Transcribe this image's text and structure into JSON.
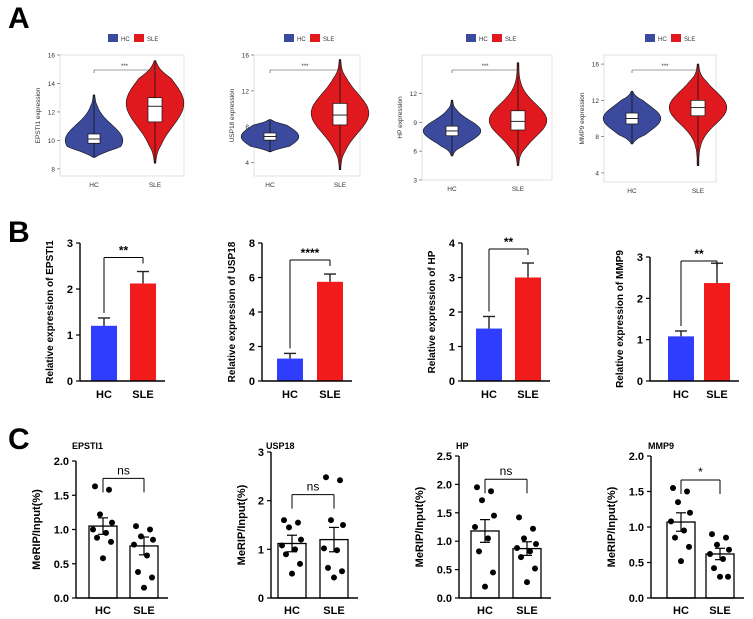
{
  "panel_labels": [
    "A",
    "B",
    "C"
  ],
  "colors": {
    "hc": "#3b4a9c",
    "sle": "#e0191f",
    "bar_hc": "#2f3dff",
    "bar_sle": "#f21b1b",
    "axis": "#000000"
  },
  "chart_data": [
    {
      "panel": "A",
      "type": "violin",
      "title": "",
      "ylabel": "EPSTI1 expression",
      "xlabel": "",
      "categories": [
        "HC",
        "SLE"
      ],
      "legend": [
        "HC",
        "SLE"
      ],
      "legend_position": "top-center",
      "ylim": [
        7.5,
        16
      ],
      "yticks": [
        8,
        10,
        12,
        14,
        16
      ],
      "series": [
        {
          "name": "HC",
          "min": 8.8,
          "q1": 9.8,
          "median": 10.1,
          "q3": 10.45,
          "max": 13.2,
          "mode": 10.0,
          "spread": 1.1
        },
        {
          "name": "SLE",
          "min": 8.4,
          "q1": 11.3,
          "median": 12.4,
          "q3": 13.0,
          "max": 15.6,
          "mode": 12.6,
          "spread": 1.6
        }
      ],
      "significance": "***"
    },
    {
      "panel": "A",
      "type": "violin",
      "title": "",
      "ylabel": "USP18 expression",
      "xlabel": "",
      "categories": [
        "HC",
        "SLE"
      ],
      "legend": [
        "HC",
        "SLE"
      ],
      "legend_position": "top-center",
      "ylim": [
        2.5,
        16
      ],
      "yticks": [
        4,
        8,
        12,
        16
      ],
      "series": [
        {
          "name": "HC",
          "min": 5.2,
          "q1": 6.5,
          "median": 6.9,
          "q3": 7.3,
          "max": 8.8,
          "mode": 6.9,
          "spread": 1.2
        },
        {
          "name": "SLE",
          "min": 3.2,
          "q1": 8.2,
          "median": 9.3,
          "q3": 10.6,
          "max": 15.5,
          "mode": 9.5,
          "spread": 2.2
        }
      ],
      "significance": "***"
    },
    {
      "panel": "A",
      "type": "violin",
      "title": "",
      "ylabel": "HP expression",
      "xlabel": "",
      "categories": [
        "HC",
        "SLE"
      ],
      "legend": [
        "HC",
        "SLE"
      ],
      "legend_position": "top-center",
      "ylim": [
        3,
        16
      ],
      "yticks": [
        3,
        6,
        9,
        12
      ],
      "series": [
        {
          "name": "HC",
          "min": 5.5,
          "q1": 7.6,
          "median": 8.1,
          "q3": 8.6,
          "max": 11.3,
          "mode": 8.1,
          "spread": 1.1
        },
        {
          "name": "SLE",
          "min": 4.5,
          "q1": 8.2,
          "median": 9.1,
          "q3": 10.2,
          "max": 15.2,
          "mode": 9.2,
          "spread": 1.7
        }
      ],
      "significance": "***"
    },
    {
      "panel": "A",
      "type": "violin",
      "title": "",
      "ylabel": "MMP9 expression",
      "xlabel": "",
      "categories": [
        "HC",
        "SLE"
      ],
      "legend": [
        "HC",
        "SLE"
      ],
      "legend_position": "top-center",
      "ylim": [
        3,
        17
      ],
      "yticks": [
        4,
        8,
        12,
        16
      ],
      "series": [
        {
          "name": "HC",
          "min": 7.2,
          "q1": 9.4,
          "median": 10.0,
          "q3": 10.6,
          "max": 13.0,
          "mode": 10.0,
          "spread": 1.4
        },
        {
          "name": "SLE",
          "min": 4.8,
          "q1": 10.3,
          "median": 11.2,
          "q3": 12.0,
          "max": 16.0,
          "mode": 11.2,
          "spread": 1.8
        }
      ],
      "significance": "***"
    },
    {
      "panel": "B",
      "type": "bar",
      "ylabel": "Relative expression of EPSTI1",
      "xlabel": "",
      "categories": [
        "HC",
        "SLE"
      ],
      "values": [
        1.2,
        2.12
      ],
      "errors": [
        0.17,
        0.26
      ],
      "ylim": [
        0,
        3
      ],
      "yticks": [
        0,
        1,
        2,
        3
      ],
      "significance": "**"
    },
    {
      "panel": "B",
      "type": "bar",
      "ylabel": "Relative expression of USP18",
      "xlabel": "",
      "categories": [
        "HC",
        "SLE"
      ],
      "values": [
        1.3,
        5.75
      ],
      "errors": [
        0.3,
        0.45
      ],
      "ylim": [
        0,
        8
      ],
      "yticks": [
        0,
        2,
        4,
        6,
        8
      ],
      "significance": "****"
    },
    {
      "panel": "B",
      "type": "bar",
      "ylabel": "Relative expression of HP",
      "xlabel": "",
      "categories": [
        "HC",
        "SLE"
      ],
      "values": [
        1.52,
        3.0
      ],
      "errors": [
        0.35,
        0.42
      ],
      "ylim": [
        0,
        4
      ],
      "yticks": [
        0,
        1,
        2,
        3,
        4
      ],
      "significance": "**"
    },
    {
      "panel": "B",
      "type": "bar",
      "ylabel": "Relative expression of MMP9",
      "xlabel": "",
      "categories": [
        "HC",
        "SLE"
      ],
      "values": [
        1.08,
        2.37
      ],
      "errors": [
        0.13,
        0.48
      ],
      "ylim": [
        0,
        3
      ],
      "yticks": [
        0,
        1,
        2,
        3
      ],
      "significance": "**"
    },
    {
      "panel": "C",
      "type": "bar_dot",
      "title": "EPSTI1",
      "ylabel": "MeRIP/Input(%)",
      "xlabel": "",
      "categories": [
        "HC",
        "SLE"
      ],
      "values": [
        1.05,
        0.76
      ],
      "errors": [
        0.12,
        0.13
      ],
      "points": [
        [
          1.63,
          1.58,
          1.22,
          1.1,
          1.0,
          0.95,
          0.88,
          0.82,
          0.58
        ],
        [
          1.05,
          1.0,
          0.9,
          0.85,
          0.78,
          0.62,
          0.38,
          0.3,
          0.15
        ]
      ],
      "ylim": [
        0,
        2.0
      ],
      "yticks": [
        0.0,
        0.5,
        1.0,
        1.5,
        2.0
      ],
      "ytick_labels": [
        "0.0",
        "0.5",
        "1.0",
        "1.5",
        "2.0"
      ],
      "significance": "ns"
    },
    {
      "panel": "C",
      "type": "bar_dot",
      "title": "USP18",
      "ylabel": "MeRIP/Input(%)",
      "xlabel": "",
      "categories": [
        "HC",
        "SLE"
      ],
      "values": [
        1.12,
        1.2
      ],
      "errors": [
        0.17,
        0.25
      ],
      "points": [
        [
          1.6,
          1.55,
          1.45,
          1.2,
          1.08,
          1.0,
          0.9,
          0.7,
          0.5
        ],
        [
          2.48,
          2.42,
          1.6,
          1.5,
          1.02,
          0.98,
          0.62,
          0.55,
          0.42
        ]
      ],
      "ylim": [
        0,
        3
      ],
      "yticks": [
        0,
        1,
        2,
        3
      ],
      "ytick_labels": [
        "0",
        "1",
        "2",
        "3"
      ],
      "significance": "ns"
    },
    {
      "panel": "C",
      "type": "bar_dot",
      "title": "HP",
      "ylabel": "MeRIP/Input(%)",
      "xlabel": "",
      "categories": [
        "HC",
        "SLE"
      ],
      "values": [
        1.18,
        0.87
      ],
      "errors": [
        0.2,
        0.12
      ],
      "points": [
        [
          1.95,
          1.88,
          1.72,
          1.45,
          1.25,
          1.05,
          0.82,
          0.45,
          0.2
        ],
        [
          1.42,
          1.22,
          1.05,
          0.95,
          0.88,
          0.82,
          0.72,
          0.52,
          0.28
        ]
      ],
      "ylim": [
        0,
        2.5
      ],
      "yticks": [
        0.0,
        0.5,
        1.0,
        1.5,
        2.0,
        2.5
      ],
      "ytick_labels": [
        "0.0",
        "0.5",
        "1.0",
        "1.5",
        "2.0",
        "2.5"
      ],
      "significance": "ns"
    },
    {
      "panel": "C",
      "type": "bar_dot",
      "title": "MMP9",
      "ylabel": "MeRIP/Input(%)",
      "xlabel": "",
      "categories": [
        "HC",
        "SLE"
      ],
      "values": [
        1.07,
        0.62
      ],
      "errors": [
        0.13,
        0.08
      ],
      "points": [
        [
          1.55,
          1.5,
          1.35,
          1.2,
          1.08,
          0.95,
          0.85,
          0.72,
          0.52
        ],
        [
          0.9,
          0.85,
          0.75,
          0.68,
          0.62,
          0.55,
          0.42,
          0.3,
          0.3
        ]
      ],
      "ylim": [
        0,
        2.0
      ],
      "yticks": [
        0.0,
        0.5,
        1.0,
        1.5,
        2.0
      ],
      "ytick_labels": [
        "0.0",
        "0.5",
        "1.0",
        "1.5",
        "2.0"
      ],
      "significance": "*"
    }
  ]
}
